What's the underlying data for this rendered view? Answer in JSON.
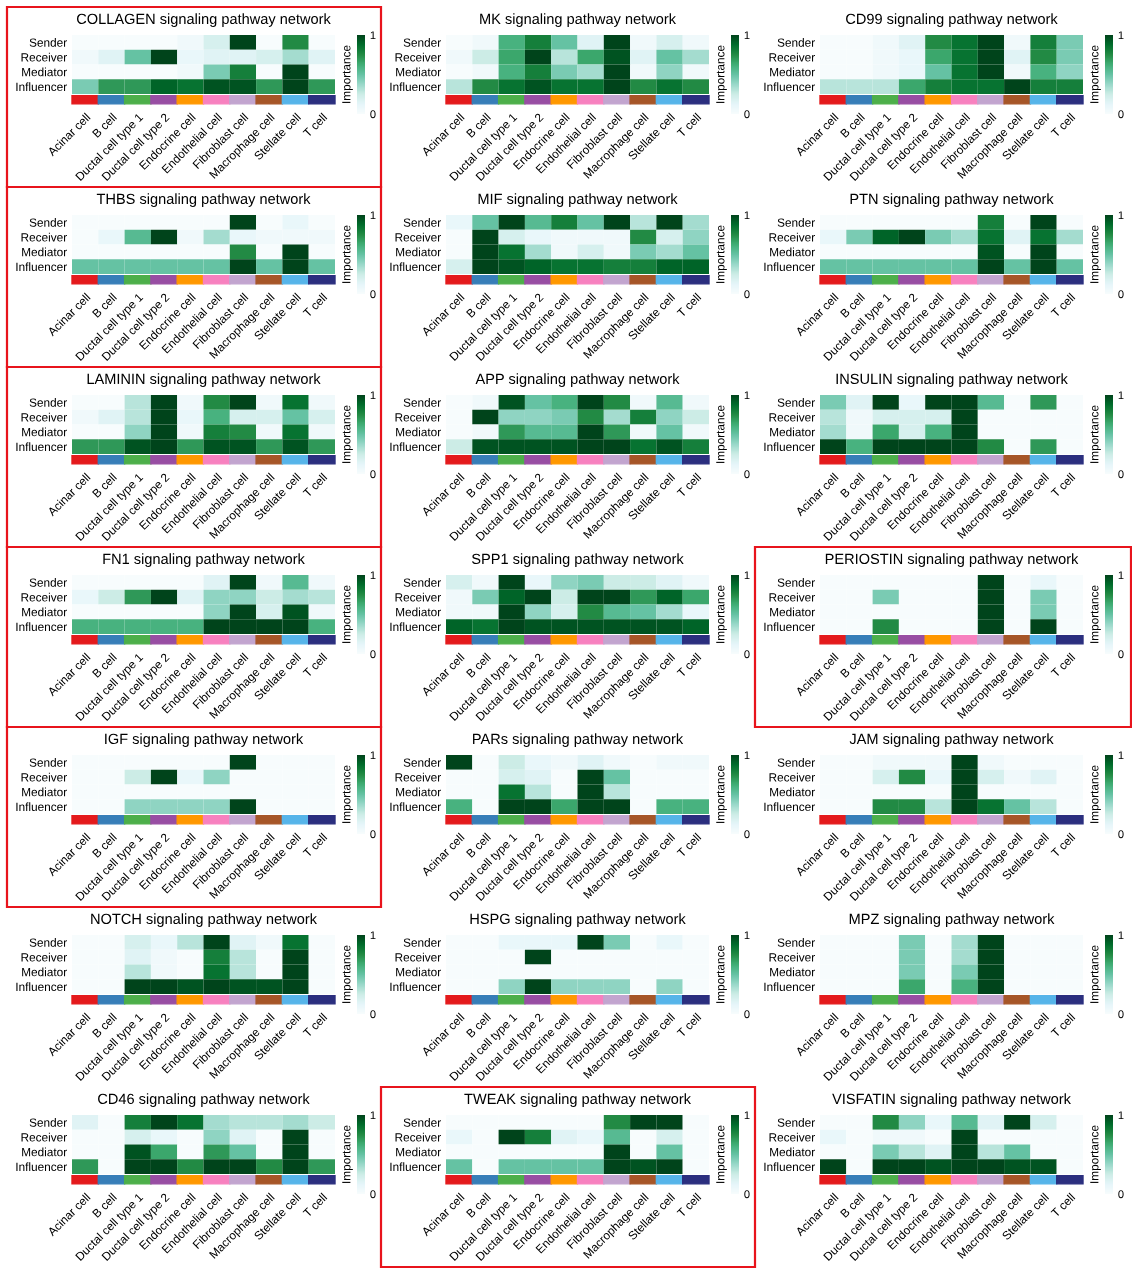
{
  "chart_data": [
    {
      "type": "heatmap",
      "title": "COLLAGEN signaling pathway network",
      "categories": [
        "Acinar cell",
        "B cell",
        "Ductal cell type 1",
        "Ductal cell type 2",
        "Endocrine cell",
        "Endothelial cell",
        "Fibroblast cell",
        "Macrophage cell",
        "Stellate cell",
        "T cell"
      ],
      "y_categories": [
        "Sender",
        "Receiver",
        "Mediator",
        "Influencer"
      ],
      "clim": [
        0,
        1
      ],
      "cticks": [
        0,
        1
      ],
      "clabel": "Importance",
      "cells": [
        [
          0,
          0,
          0,
          0,
          0.05,
          0.2,
          1,
          0,
          0.75,
          0
        ],
        [
          0.05,
          0.15,
          0.5,
          1,
          0.1,
          0.15,
          0.15,
          0.2,
          0.35,
          0.15
        ],
        [
          0,
          0,
          0,
          0,
          0.05,
          0.45,
          0.8,
          0,
          1,
          0
        ],
        [
          0.45,
          0.7,
          0.7,
          0.9,
          0.85,
          0.95,
          0.95,
          0.7,
          1,
          0.7
        ]
      ]
    },
    {
      "type": "heatmap",
      "title": "MK signaling pathway network",
      "categories": [
        "Acinar cell",
        "B cell",
        "Ductal cell type 1",
        "Ductal cell type 2",
        "Endocrine cell",
        "Endothelial cell",
        "Fibroblast cell",
        "Macrophage cell",
        "Stellate cell",
        "T cell"
      ],
      "y_categories": [
        "Sender",
        "Receiver",
        "Mediator",
        "Influencer"
      ],
      "clim": [
        0,
        1
      ],
      "cticks": [
        0,
        1
      ],
      "clabel": "Importance",
      "cells": [
        [
          0,
          0.05,
          0.6,
          0.8,
          0.5,
          0.15,
          1,
          0.05,
          0.2,
          0.05
        ],
        [
          0.05,
          0.25,
          0.65,
          1,
          0.3,
          0.65,
          0.95,
          0.15,
          0.5,
          0.35
        ],
        [
          0,
          0.05,
          0.6,
          0.8,
          0.45,
          0.35,
          1,
          0.05,
          0.4,
          0.05
        ],
        [
          0.3,
          0.75,
          0.85,
          0.95,
          0.85,
          0.85,
          1,
          0.75,
          0.85,
          0.75
        ]
      ]
    },
    {
      "type": "heatmap",
      "title": "CD99 signaling pathway network",
      "categories": [
        "Acinar cell",
        "B cell",
        "Ductal cell type 1",
        "Ductal cell type 2",
        "Endocrine cell",
        "Endothelial cell",
        "Fibroblast cell",
        "Macrophage cell",
        "Stellate cell",
        "T cell"
      ],
      "y_categories": [
        "Sender",
        "Receiver",
        "Mediator",
        "Influencer"
      ],
      "clim": [
        0,
        1
      ],
      "cticks": [
        0,
        1
      ],
      "clabel": "Importance",
      "cells": [
        [
          0,
          0,
          0.05,
          0.15,
          0.75,
          0.85,
          1,
          0.05,
          0.8,
          0.45
        ],
        [
          0,
          0,
          0.05,
          0.1,
          0.65,
          0.85,
          1,
          0.15,
          0.75,
          0.45
        ],
        [
          0,
          0,
          0.05,
          0.1,
          0.5,
          0.85,
          1,
          0.05,
          0.6,
          0.4
        ],
        [
          0.3,
          0.3,
          0.3,
          0.65,
          0.8,
          0.85,
          0.85,
          1,
          0.8,
          0.8
        ]
      ]
    },
    {
      "type": "heatmap",
      "title": "THBS signaling pathway network",
      "categories": [
        "Acinar cell",
        "B cell",
        "Ductal cell type 1",
        "Ductal cell type 2",
        "Endocrine cell",
        "Endothelial cell",
        "Fibroblast cell",
        "Macrophage cell",
        "Stellate cell",
        "T cell"
      ],
      "y_categories": [
        "Sender",
        "Receiver",
        "Mediator",
        "Influencer"
      ],
      "clim": [
        0,
        1
      ],
      "cticks": [
        0,
        1
      ],
      "clabel": "Importance",
      "cells": [
        [
          0,
          0,
          0,
          0,
          0,
          0,
          1,
          0,
          0.1,
          0
        ],
        [
          0,
          0.1,
          0.55,
          1,
          0.05,
          0.35,
          0.1,
          0.05,
          0.05,
          0.05
        ],
        [
          0,
          0,
          0,
          0,
          0,
          0,
          0.75,
          0,
          1,
          0
        ],
        [
          0.5,
          0.5,
          0.5,
          0.5,
          0.5,
          0.5,
          1,
          0.5,
          1,
          0.5
        ]
      ]
    },
    {
      "type": "heatmap",
      "title": "MIF signaling pathway network",
      "categories": [
        "Acinar cell",
        "B cell",
        "Ductal cell type 1",
        "Ductal cell type 2",
        "Endocrine cell",
        "Endothelial cell",
        "Fibroblast cell",
        "Macrophage cell",
        "Stellate cell",
        "T cell"
      ],
      "y_categories": [
        "Sender",
        "Receiver",
        "Mediator",
        "Influencer"
      ],
      "clim": [
        0,
        1
      ],
      "cticks": [
        0,
        1
      ],
      "clabel": "Importance",
      "cells": [
        [
          0.1,
          0.5,
          1,
          0.55,
          0.8,
          0.5,
          1,
          0.3,
          1,
          0.35
        ],
        [
          0,
          1,
          0.2,
          0.1,
          0.05,
          0.05,
          0.05,
          0.75,
          0.2,
          0.4
        ],
        [
          0,
          1,
          0.85,
          0.35,
          0.05,
          0.2,
          0.05,
          0.45,
          0.35,
          0.5
        ],
        [
          0.2,
          1,
          0.95,
          0.9,
          0.85,
          0.85,
          0.8,
          0.8,
          0.9,
          0.9
        ]
      ]
    },
    {
      "type": "heatmap",
      "title": "PTN signaling pathway network",
      "categories": [
        "Acinar cell",
        "B cell",
        "Ductal cell type 1",
        "Ductal cell type 2",
        "Endocrine cell",
        "Endothelial cell",
        "Fibroblast cell",
        "Macrophage cell",
        "Stellate cell",
        "T cell"
      ],
      "y_categories": [
        "Sender",
        "Receiver",
        "Mediator",
        "Influencer"
      ],
      "clim": [
        0,
        1
      ],
      "cticks": [
        0,
        1
      ],
      "clabel": "Importance",
      "cells": [
        [
          0,
          0,
          0,
          0,
          0,
          0,
          0.8,
          0,
          1,
          0
        ],
        [
          0.1,
          0.45,
          0.9,
          1,
          0.45,
          0.35,
          0.85,
          0.15,
          0.85,
          0.35
        ],
        [
          0,
          0,
          0,
          0,
          0,
          0,
          0.95,
          0,
          1,
          0
        ],
        [
          0.5,
          0.5,
          0.5,
          0.5,
          0.5,
          0.5,
          1,
          0.5,
          1,
          0.5
        ]
      ]
    },
    {
      "type": "heatmap",
      "title": "LAMININ signaling pathway network",
      "categories": [
        "Acinar cell",
        "B cell",
        "Ductal cell type 1",
        "Ductal cell type 2",
        "Endocrine cell",
        "Endothelial cell",
        "Fibroblast cell",
        "Macrophage cell",
        "Stellate cell",
        "T cell"
      ],
      "y_categories": [
        "Sender",
        "Receiver",
        "Mediator",
        "Influencer"
      ],
      "clim": [
        0,
        1
      ],
      "cticks": [
        0,
        1
      ],
      "clabel": "Importance",
      "cells": [
        [
          0,
          0,
          0.3,
          1,
          0.05,
          0.75,
          1,
          0.05,
          0.85,
          0.05
        ],
        [
          0.05,
          0.15,
          0.3,
          1,
          0.1,
          0.6,
          0.2,
          0.2,
          0.5,
          0.2
        ],
        [
          0,
          0,
          0.4,
          1,
          0.05,
          0.8,
          0.75,
          0.05,
          0.85,
          0.05
        ],
        [
          0.7,
          0.7,
          0.95,
          1,
          0.7,
          0.95,
          0.95,
          0.7,
          0.95,
          0.7
        ]
      ]
    },
    {
      "type": "heatmap",
      "title": "APP signaling pathway network",
      "categories": [
        "Acinar cell",
        "B cell",
        "Ductal cell type 1",
        "Ductal cell type 2",
        "Endocrine cell",
        "Endothelial cell",
        "Fibroblast cell",
        "Macrophage cell",
        "Stellate cell",
        "T cell"
      ],
      "y_categories": [
        "Sender",
        "Receiver",
        "Mediator",
        "Influencer"
      ],
      "clim": [
        0,
        1
      ],
      "cticks": [
        0,
        1
      ],
      "clabel": "Importance",
      "cells": [
        [
          0,
          0.05,
          0.95,
          0.5,
          0.6,
          1,
          0.75,
          0.05,
          0.55,
          0.05
        ],
        [
          0,
          1,
          0.4,
          0.4,
          0.45,
          0.75,
          0.35,
          0.8,
          0.4,
          0.25
        ],
        [
          0,
          0.05,
          0.7,
          0.55,
          0.55,
          1,
          0.7,
          0.05,
          0.5,
          0.05
        ],
        [
          0.25,
          0.95,
          0.95,
          0.95,
          0.95,
          1,
          1,
          0.85,
          0.95,
          0.8
        ]
      ]
    },
    {
      "type": "heatmap",
      "title": "INSULIN signaling pathway network",
      "categories": [
        "Acinar cell",
        "B cell",
        "Ductal cell type 1",
        "Ductal cell type 2",
        "Endocrine cell",
        "Endothelial cell",
        "Fibroblast cell",
        "Macrophage cell",
        "Stellate cell",
        "T cell"
      ],
      "y_categories": [
        "Sender",
        "Receiver",
        "Mediator",
        "Influencer"
      ],
      "clim": [
        0,
        1
      ],
      "cticks": [
        0,
        1
      ],
      "clabel": "Importance",
      "cells": [
        [
          0.45,
          0.15,
          1,
          0.1,
          1,
          1,
          0.55,
          0,
          0.7,
          0
        ],
        [
          0.3,
          0.05,
          0.2,
          0.2,
          0.2,
          1,
          0,
          0,
          0,
          0
        ],
        [
          0.35,
          0.05,
          0.65,
          0.2,
          0.6,
          1,
          0,
          0,
          0,
          0
        ],
        [
          1,
          0.6,
          1,
          1,
          1,
          1,
          0.75,
          0,
          0.7,
          0
        ]
      ]
    },
    {
      "type": "heatmap",
      "title": "FN1 signaling pathway network",
      "categories": [
        "Acinar cell",
        "B cell",
        "Ductal cell type 1",
        "Ductal cell type 2",
        "Endocrine cell",
        "Endothelial cell",
        "Fibroblast cell",
        "Macrophage cell",
        "Stellate cell",
        "T cell"
      ],
      "y_categories": [
        "Sender",
        "Receiver",
        "Mediator",
        "Influencer"
      ],
      "clim": [
        0,
        1
      ],
      "cticks": [
        0,
        1
      ],
      "clabel": "Importance",
      "cells": [
        [
          0,
          0,
          0,
          0,
          0,
          0.15,
          1,
          0.05,
          0.55,
          0.05
        ],
        [
          0.1,
          0.25,
          0.7,
          1,
          0.15,
          0.4,
          0.4,
          0.25,
          0.35,
          0.3
        ],
        [
          0,
          0,
          0,
          0,
          0,
          0.4,
          1,
          0.2,
          0.95,
          0.05
        ],
        [
          0.6,
          0.6,
          0.6,
          0.6,
          0.6,
          1,
          1,
          1,
          1,
          0.6
        ]
      ]
    },
    {
      "type": "heatmap",
      "title": "SPP1 signaling pathway network",
      "categories": [
        "Acinar cell",
        "B cell",
        "Ductal cell type 1",
        "Ductal cell type 2",
        "Endocrine cell",
        "Endothelial cell",
        "Fibroblast cell",
        "Macrophage cell",
        "Stellate cell",
        "T cell"
      ],
      "y_categories": [
        "Sender",
        "Receiver",
        "Mediator",
        "Influencer"
      ],
      "clim": [
        0,
        1
      ],
      "cticks": [
        0,
        1
      ],
      "clabel": "Importance",
      "cells": [
        [
          0.2,
          0.05,
          1,
          0.1,
          0.4,
          0.45,
          0.25,
          0.25,
          0.15,
          0.05
        ],
        [
          0.05,
          0.45,
          0.9,
          1,
          0.25,
          1,
          1,
          0.7,
          0.9,
          0.65
        ],
        [
          0.05,
          0.05,
          1,
          0.4,
          0.2,
          0.75,
          0.55,
          0.5,
          0.35,
          0.1
        ],
        [
          0.9,
          0.85,
          1,
          0.95,
          0.95,
          0.95,
          0.95,
          0.95,
          0.95,
          0.9
        ]
      ]
    },
    {
      "type": "heatmap",
      "title": "PERIOSTIN signaling pathway network",
      "categories": [
        "Acinar cell",
        "B cell",
        "Ductal cell type 1",
        "Ductal cell type 2",
        "Endocrine cell",
        "Endothelial cell",
        "Fibroblast cell",
        "Macrophage cell",
        "Stellate cell",
        "T cell"
      ],
      "y_categories": [
        "Sender",
        "Receiver",
        "Mediator",
        "Influencer"
      ],
      "clim": [
        0,
        1
      ],
      "cticks": [
        0,
        1
      ],
      "clabel": "Importance",
      "cells": [
        [
          0,
          0,
          0,
          0,
          0,
          0,
          1,
          0,
          0.1,
          0
        ],
        [
          0,
          0,
          0.45,
          0,
          0,
          0,
          1,
          0,
          0.45,
          0
        ],
        [
          0,
          0,
          0,
          0,
          0,
          0,
          1,
          0,
          0.45,
          0
        ],
        [
          0,
          0,
          0.75,
          0,
          0,
          0,
          1,
          0,
          1,
          0
        ]
      ]
    },
    {
      "type": "heatmap",
      "title": "IGF signaling pathway network",
      "categories": [
        "Acinar cell",
        "B cell",
        "Ductal cell type 1",
        "Ductal cell type 2",
        "Endocrine cell",
        "Endothelial cell",
        "Fibroblast cell",
        "Macrophage cell",
        "Stellate cell",
        "T cell"
      ],
      "y_categories": [
        "Sender",
        "Receiver",
        "Mediator",
        "Influencer"
      ],
      "clim": [
        0,
        1
      ],
      "cticks": [
        0,
        1
      ],
      "clabel": "Importance",
      "cells": [
        [
          0,
          0,
          0,
          0,
          0,
          0,
          1,
          0,
          0,
          0
        ],
        [
          0,
          0,
          0.25,
          1,
          0.1,
          0.4,
          0,
          0,
          0,
          0
        ],
        [
          0,
          0,
          0,
          0,
          0,
          0,
          0,
          0,
          0,
          0
        ],
        [
          0,
          0,
          0.4,
          0.4,
          0.4,
          0.4,
          1,
          0,
          0,
          0
        ]
      ]
    },
    {
      "type": "heatmap",
      "title": "PARs signaling pathway network",
      "categories": [
        "Acinar cell",
        "B cell",
        "Ductal cell type 1",
        "Ductal cell type 2",
        "Endocrine cell",
        "Endothelial cell",
        "Fibroblast cell",
        "Macrophage cell",
        "Stellate cell",
        "T cell"
      ],
      "y_categories": [
        "Sender",
        "Receiver",
        "Mediator",
        "Influencer"
      ],
      "clim": [
        0,
        1
      ],
      "cticks": [
        0,
        1
      ],
      "clabel": "Importance",
      "cells": [
        [
          1,
          0,
          0.25,
          0.1,
          0.05,
          0.15,
          0.05,
          0,
          0.05,
          0.05
        ],
        [
          0,
          0,
          0.2,
          0.15,
          0,
          1,
          0.5,
          0,
          0,
          0
        ],
        [
          0,
          0,
          0.85,
          0.3,
          0,
          1,
          0.3,
          0,
          0,
          0
        ],
        [
          0.6,
          0,
          1,
          1,
          0.65,
          1,
          1,
          0,
          0.6,
          0.6
        ]
      ]
    },
    {
      "type": "heatmap",
      "title": "JAM signaling pathway network",
      "categories": [
        "Acinar cell",
        "B cell",
        "Ductal cell type 1",
        "Ductal cell type 2",
        "Endocrine cell",
        "Endothelial cell",
        "Fibroblast cell",
        "Macrophage cell",
        "Stellate cell",
        "T cell"
      ],
      "y_categories": [
        "Sender",
        "Receiver",
        "Mediator",
        "Influencer"
      ],
      "clim": [
        0,
        1
      ],
      "cticks": [
        0,
        1
      ],
      "clabel": "Importance",
      "cells": [
        [
          0,
          0,
          0.05,
          0.05,
          0.05,
          1,
          0.05,
          0,
          0,
          0
        ],
        [
          0,
          0,
          0.2,
          0.75,
          0.1,
          1,
          0.2,
          0.05,
          0.15,
          0
        ],
        [
          0,
          0,
          0,
          0,
          0,
          1,
          0,
          0,
          0,
          0
        ],
        [
          0,
          0,
          0.75,
          0.75,
          0.3,
          1,
          0.85,
          0.5,
          0.3,
          0
        ]
      ]
    },
    {
      "type": "heatmap",
      "title": "NOTCH signaling pathway network",
      "categories": [
        "Acinar cell",
        "B cell",
        "Ductal cell type 1",
        "Ductal cell type 2",
        "Endocrine cell",
        "Endothelial cell",
        "Fibroblast cell",
        "Macrophage cell",
        "Stellate cell",
        "T cell"
      ],
      "y_categories": [
        "Sender",
        "Receiver",
        "Mediator",
        "Influencer"
      ],
      "clim": [
        0,
        1
      ],
      "cticks": [
        0,
        1
      ],
      "clabel": "Importance",
      "cells": [
        [
          0,
          0,
          0.2,
          0.1,
          0.3,
          1,
          0.15,
          0.05,
          0.85,
          0
        ],
        [
          0,
          0,
          0.15,
          0.05,
          0,
          0.8,
          0.3,
          0,
          1,
          0
        ],
        [
          0,
          0,
          0.3,
          0.05,
          0,
          0.85,
          0.3,
          0,
          1,
          0
        ],
        [
          0,
          0,
          1,
          1,
          0.95,
          1,
          0.95,
          0.95,
          1,
          0
        ]
      ]
    },
    {
      "type": "heatmap",
      "title": "HSPG signaling pathway network",
      "categories": [
        "Acinar cell",
        "B cell",
        "Ductal cell type 1",
        "Ductal cell type 2",
        "Endocrine cell",
        "Endothelial cell",
        "Fibroblast cell",
        "Macrophage cell",
        "Stellate cell",
        "T cell"
      ],
      "y_categories": [
        "Sender",
        "Receiver",
        "Mediator",
        "Influencer"
      ],
      "clim": [
        0,
        1
      ],
      "cticks": [
        0,
        1
      ],
      "clabel": "Importance",
      "cells": [
        [
          0,
          0,
          0.1,
          0.1,
          0.1,
          1,
          0.45,
          0,
          0.1,
          0
        ],
        [
          0,
          0,
          0,
          1,
          0,
          0,
          0,
          0,
          0,
          0
        ],
        [
          0,
          0,
          0,
          0,
          0,
          0,
          0,
          0,
          0,
          0
        ],
        [
          0,
          0,
          0.4,
          1,
          0.4,
          0.4,
          0.4,
          0,
          0.4,
          0
        ]
      ]
    },
    {
      "type": "heatmap",
      "title": "MPZ signaling pathway network",
      "categories": [
        "Acinar cell",
        "B cell",
        "Ductal cell type 1",
        "Ductal cell type 2",
        "Endocrine cell",
        "Endothelial cell",
        "Fibroblast cell",
        "Macrophage cell",
        "Stellate cell",
        "T cell"
      ],
      "y_categories": [
        "Sender",
        "Receiver",
        "Mediator",
        "Influencer"
      ],
      "clim": [
        0,
        1
      ],
      "cticks": [
        0,
        1
      ],
      "clabel": "Importance",
      "cells": [
        [
          0,
          0,
          0,
          0.45,
          0,
          0.35,
          1,
          0,
          0,
          0
        ],
        [
          0,
          0,
          0,
          0.45,
          0,
          0.35,
          1,
          0,
          0,
          0
        ],
        [
          0,
          0,
          0,
          0.45,
          0,
          0.45,
          1,
          0,
          0,
          0
        ],
        [
          0,
          0,
          0,
          0.65,
          0,
          0.6,
          1,
          0,
          0,
          0
        ]
      ]
    },
    {
      "type": "heatmap",
      "title": "CD46 signaling pathway network",
      "categories": [
        "Acinar cell",
        "B cell",
        "Ductal cell type 1",
        "Ductal cell type 2",
        "Endocrine cell",
        "Endothelial cell",
        "Fibroblast cell",
        "Macrophage cell",
        "Stellate cell",
        "T cell"
      ],
      "y_categories": [
        "Sender",
        "Receiver",
        "Mediator",
        "Influencer"
      ],
      "clim": [
        0,
        1
      ],
      "cticks": [
        0,
        1
      ],
      "clabel": "Importance",
      "cells": [
        [
          0.15,
          0,
          0.8,
          1,
          0.85,
          0.35,
          0.3,
          0.3,
          0.35,
          0.25
        ],
        [
          0,
          0,
          0.2,
          0.1,
          0,
          0.4,
          0.15,
          0,
          1,
          0
        ],
        [
          0,
          0,
          0.95,
          0.65,
          0,
          0.7,
          0.5,
          0,
          1,
          0
        ],
        [
          0.7,
          0,
          1,
          1,
          0.75,
          1,
          1,
          0.75,
          1,
          0.7
        ]
      ]
    },
    {
      "type": "heatmap",
      "title": "TWEAK signaling pathway network",
      "categories": [
        "Acinar cell",
        "B cell",
        "Ductal cell type 1",
        "Ductal cell type 2",
        "Endocrine cell",
        "Endothelial cell",
        "Fibroblast cell",
        "Macrophage cell",
        "Stellate cell",
        "T cell"
      ],
      "y_categories": [
        "Sender",
        "Receiver",
        "Mediator",
        "Influencer"
      ],
      "clim": [
        0,
        1
      ],
      "cticks": [
        0,
        1
      ],
      "clabel": "Importance",
      "cells": [
        [
          0,
          0,
          0,
          0,
          0,
          0,
          0.75,
          1,
          1,
          0
        ],
        [
          0.1,
          0,
          1,
          0.8,
          0.15,
          0.1,
          0.55,
          0,
          0.2,
          0
        ],
        [
          0,
          0,
          0,
          0,
          0,
          0,
          1,
          0,
          0.5,
          0
        ],
        [
          0.5,
          0,
          0.5,
          0.5,
          0.5,
          0.5,
          1,
          0.95,
          1,
          0
        ]
      ]
    },
    {
      "type": "heatmap",
      "title": "VISFATIN signaling pathway network",
      "categories": [
        "Acinar cell",
        "B cell",
        "Ductal cell type 1",
        "Ductal cell type 2",
        "Endocrine cell",
        "Endothelial cell",
        "Fibroblast cell",
        "Macrophage cell",
        "Stellate cell",
        "T cell"
      ],
      "y_categories": [
        "Sender",
        "Receiver",
        "Mediator",
        "Influencer"
      ],
      "clim": [
        0,
        1
      ],
      "cticks": [
        0,
        1
      ],
      "clabel": "Importance",
      "cells": [
        [
          0,
          0,
          0.75,
          0.4,
          0.1,
          0.55,
          0.15,
          1,
          0.2,
          0
        ],
        [
          0.1,
          0,
          0.05,
          0.05,
          0,
          1,
          0,
          0,
          0,
          0
        ],
        [
          0,
          0,
          0.45,
          0.3,
          0.15,
          1,
          0.3,
          0.5,
          0,
          0
        ],
        [
          1,
          0,
          1,
          1,
          0.95,
          1,
          1,
          0.95,
          0.95,
          0
        ]
      ]
    }
  ]
}
